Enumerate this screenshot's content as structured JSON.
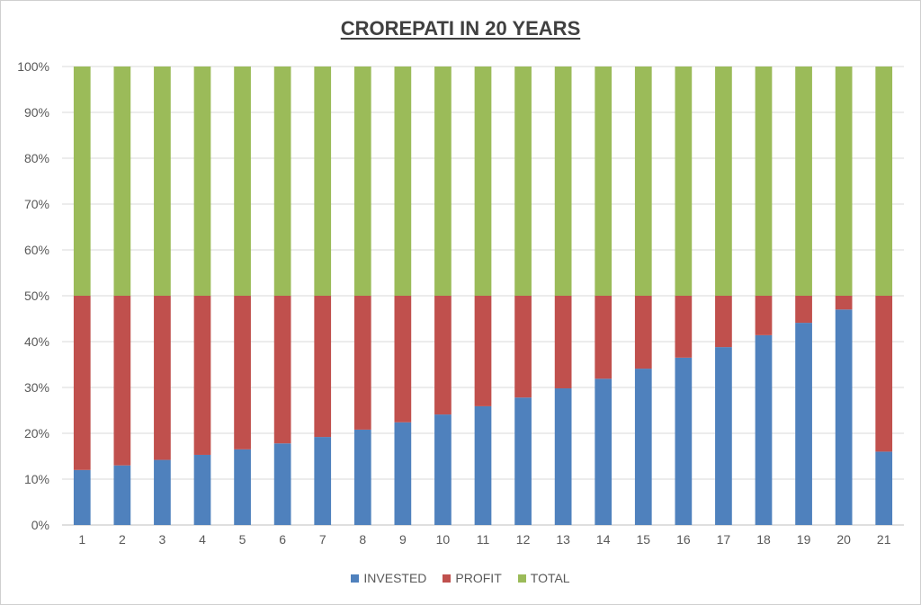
{
  "chart_data": {
    "type": "bar",
    "stacked": true,
    "title": "CROREPATI IN 20 YEARS",
    "categories": [
      "1",
      "2",
      "3",
      "4",
      "5",
      "6",
      "7",
      "8",
      "9",
      "10",
      "11",
      "12",
      "13",
      "14",
      "15",
      "16",
      "17",
      "18",
      "19",
      "20",
      "21"
    ],
    "y_ticks": [
      "0%",
      "10%",
      "20%",
      "30%",
      "40%",
      "50%",
      "60%",
      "70%",
      "80%",
      "90%",
      "100%"
    ],
    "ylim": [
      0,
      100
    ],
    "y_unit": "percent",
    "grid": true,
    "legend_position": "bottom",
    "series": [
      {
        "name": "INVESTED",
        "color": "#4f81bd",
        "values": [
          12,
          13,
          14.2,
          15.3,
          16.5,
          17.8,
          19.2,
          20.8,
          22.4,
          24.1,
          25.9,
          27.8,
          29.8,
          31.9,
          34.1,
          36.5,
          38.8,
          41.4,
          44.1,
          47,
          16
        ]
      },
      {
        "name": "PROFIT",
        "color": "#c0504d",
        "values": [
          38,
          37,
          35.8,
          34.7,
          33.5,
          32.2,
          30.8,
          29.2,
          27.6,
          25.9,
          24.1,
          22.2,
          20.2,
          18.1,
          15.9,
          13.5,
          11.2,
          8.6,
          5.9,
          3,
          34
        ]
      },
      {
        "name": "TOTAL",
        "color": "#9bbb59",
        "values": [
          50,
          50,
          50,
          50,
          50,
          50,
          50,
          50,
          50,
          50,
          50,
          50,
          50,
          50,
          50,
          50,
          50,
          50,
          50,
          50,
          50
        ]
      }
    ]
  }
}
